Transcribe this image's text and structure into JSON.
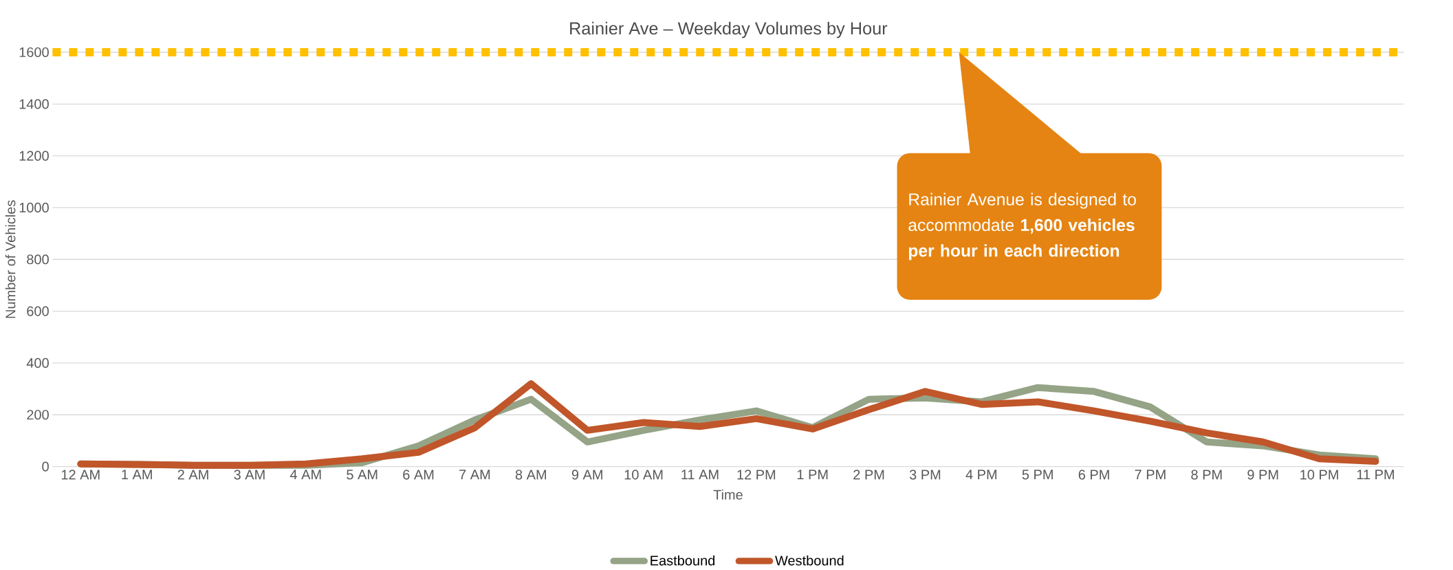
{
  "chart_data": {
    "type": "line",
    "title": "Rainier Ave – Weekday Volumes by Hour",
    "xlabel": "Time",
    "ylabel": "Number of Vehicles",
    "categories": [
      "12 AM",
      "1 AM",
      "2 AM",
      "3 AM",
      "4 AM",
      "5 AM",
      "6 AM",
      "7 AM",
      "8 AM",
      "9 AM",
      "10 AM",
      "11 AM",
      "12 PM",
      "1 PM",
      "2 PM",
      "3 PM",
      "4 PM",
      "5 PM",
      "6 PM",
      "7 PM",
      "8 PM",
      "9 PM",
      "10 PM",
      "11 PM"
    ],
    "series": [
      {
        "name": "Eastbound",
        "color": "#95a386",
        "values": [
          10,
          8,
          5,
          5,
          5,
          15,
          80,
          180,
          260,
          95,
          140,
          180,
          215,
          150,
          260,
          265,
          250,
          305,
          290,
          230,
          95,
          80,
          45,
          30
        ]
      },
      {
        "name": "Westbound",
        "color": "#c0562a",
        "values": [
          10,
          8,
          5,
          5,
          10,
          30,
          55,
          150,
          320,
          140,
          170,
          155,
          185,
          145,
          220,
          290,
          240,
          250,
          215,
          175,
          130,
          95,
          30,
          20
        ]
      }
    ],
    "ylim": [
      0,
      1600
    ],
    "yticks": [
      0,
      200,
      400,
      600,
      800,
      1000,
      1200,
      1400,
      1600
    ],
    "ref_lines": [
      {
        "axis": "y",
        "value": 1600,
        "color": "#ffc000",
        "line_style": "dotted"
      }
    ],
    "annotations": [
      "Rainier Avenue is designed to accommodate **1,600 vehicles per hour in each direction**"
    ],
    "grid": "y",
    "legend": "bottom",
    "marker": "none",
    "line_style": "solid"
  }
}
